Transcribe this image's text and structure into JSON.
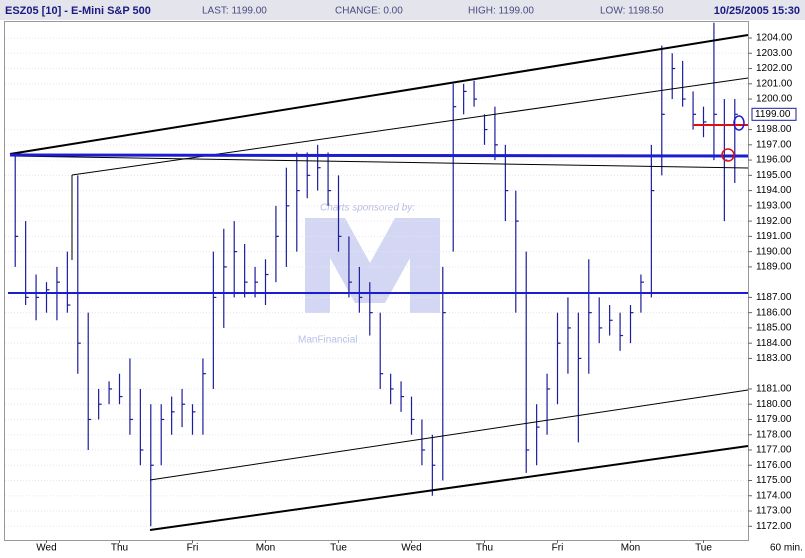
{
  "chart_data": {
    "type": "ohlc",
    "title": "ESZ05 [10] - E-Mini S&P 500",
    "info": [
      "LAST: 1199.00",
      "CHANGE: 0.00",
      "HIGH: 1199.00",
      "LOW: 1198.50"
    ],
    "timestamp": "10/25/2005 15:30",
    "interval_label": "60 min.",
    "watermark": [
      "Charts sponsored by:",
      "ManFinancial"
    ],
    "last_price": {
      "value": 1199,
      "label": "1199.00"
    },
    "color": "#1c1c9c",
    "grid": true,
    "categories": [
      null,
      null,
      null,
      "Wed",
      null,
      null,
      null,
      null,
      null,
      null,
      "Thu",
      null,
      null,
      null,
      null,
      null,
      null,
      "Fri",
      null,
      null,
      null,
      null,
      null,
      null,
      "Mon",
      null,
      null,
      null,
      null,
      null,
      null,
      "Tue",
      null,
      null,
      null,
      null,
      null,
      null,
      "Wed",
      null,
      null,
      null,
      null,
      null,
      null,
      "Thu",
      null,
      null,
      null,
      null,
      null,
      null,
      "Fri",
      null,
      null,
      null,
      null,
      null,
      null,
      "Mon",
      null,
      null,
      null,
      null,
      null,
      null,
      "Tue",
      null,
      null,
      null
    ],
    "high": [
      1196.3,
      1192,
      1188.5,
      1188,
      1189,
      1190,
      1195,
      1186,
      1181,
      1181.5,
      1182,
      1183,
      1181,
      1180,
      1180,
      1180.5,
      1181,
      1180,
      1183,
      1190,
      1191.5,
      1192,
      1190.5,
      1189,
      1189.5,
      1193,
      1195.5,
      1196.5,
      1196.5,
      1197,
      1196.5,
      1195,
      1191,
      1189,
      1188,
      1186,
      1182,
      1181.5,
      1180.5,
      1179,
      1178,
      1189,
      1201,
      1201,
      1201.2,
      1199,
      1199.5,
      1197,
      1194,
      1190,
      1180,
      1182,
      1186,
      1187,
      1186,
      1189.5,
      1187,
      1186.5,
      1186,
      1186.5,
      1188.5,
      1197,
      1203.5,
      1203,
      1202.5,
      1200.5,
      1199.5,
      1205,
      1200,
      1200
    ],
    "low": [
      1189,
      1186.5,
      1185.5,
      1186,
      1185.5,
      1186,
      1182,
      1177,
      1179,
      1180,
      1180,
      1178,
      1176,
      1172,
      1176,
      1178,
      1178.5,
      1178,
      1178,
      1181,
      1185,
      1187,
      1187,
      1187,
      1186.5,
      1188,
      1189,
      1190,
      1193.5,
      1194,
      1193,
      1190,
      1187,
      1186,
      1184.5,
      1181,
      1180,
      1179.5,
      1178,
      1176,
      1174,
      1175,
      1190,
      1199,
      1199.5,
      1197,
      1196,
      1192,
      1186,
      1175.5,
      1176,
      1178,
      1180,
      1182,
      1177.5,
      1182,
      1184,
      1184.5,
      1183.5,
      1184,
      1186,
      1187,
      1195,
      1200,
      1199.5,
      1198,
      1197.5,
      1196,
      1192,
      1194.5
    ],
    "close": [
      1191,
      1187,
      1187,
      1187.5,
      1188,
      1186.5,
      1184,
      1179,
      1180,
      1181,
      1180.5,
      1179,
      1177,
      1176,
      1179,
      1179.5,
      1180,
      1179.5,
      1182,
      1187,
      1189,
      1190,
      1188,
      1188,
      1188.5,
      1191,
      1193,
      1194,
      1195,
      1195.5,
      1194,
      1191,
      1188,
      1187,
      1186,
      1182,
      1181,
      1180.5,
      1179,
      1177,
      1176,
      1186,
      1199.5,
      1200.5,
      1200,
      1198,
      1197,
      1194,
      1192,
      1177,
      1178.5,
      1181,
      1184,
      1185,
      1183,
      1186,
      1185,
      1185.5,
      1184.5,
      1186,
      1188,
      1194,
      1199,
      1202,
      1200,
      1199,
      1198.5,
      1199,
      1196,
      1199
    ],
    "ylim": [
      1171.1,
      1205.05
    ],
    "yticks": [
      {
        "value": 1204,
        "label": "1204.00"
      },
      {
        "value": 1203,
        "label": "1203.00"
      },
      {
        "value": 1202,
        "label": "1202.00"
      },
      {
        "value": 1201,
        "label": "1201.00"
      },
      {
        "value": 1200,
        "label": "1200.00"
      },
      {
        "value": 1198,
        "label": "1198.00"
      },
      {
        "value": 1197,
        "label": "1197.00"
      },
      {
        "value": 1196,
        "label": "1196.00"
      },
      {
        "value": 1195,
        "label": "1195.00"
      },
      {
        "value": 1194,
        "label": "1194.00"
      },
      {
        "value": 1193,
        "label": "1193.00"
      },
      {
        "value": 1192,
        "label": "1192.00"
      },
      {
        "value": 1191,
        "label": "1191.00"
      },
      {
        "value": 1190,
        "label": "1190.00"
      },
      {
        "value": 1189,
        "label": "1189.00"
      },
      {
        "value": 1187,
        "label": "1187.00"
      },
      {
        "value": 1186,
        "label": "1186.00"
      },
      {
        "value": 1185,
        "label": "1185.00"
      },
      {
        "value": 1184,
        "label": "1184.00"
      },
      {
        "value": 1183,
        "label": "1183.00"
      },
      {
        "value": 1181,
        "label": "1181.00"
      },
      {
        "value": 1180,
        "label": "1180.00"
      },
      {
        "value": 1179,
        "label": "1179.00"
      },
      {
        "value": 1178,
        "label": "1178.00"
      },
      {
        "value": 1177,
        "label": "1177.00"
      },
      {
        "value": 1176,
        "label": "1176.00"
      },
      {
        "value": 1175,
        "label": "1175.00"
      },
      {
        "value": 1174,
        "label": "1174.00"
      },
      {
        "value": 1173,
        "label": "1173.00"
      },
      {
        "value": 1172,
        "label": "1172.00"
      }
    ]
  }
}
